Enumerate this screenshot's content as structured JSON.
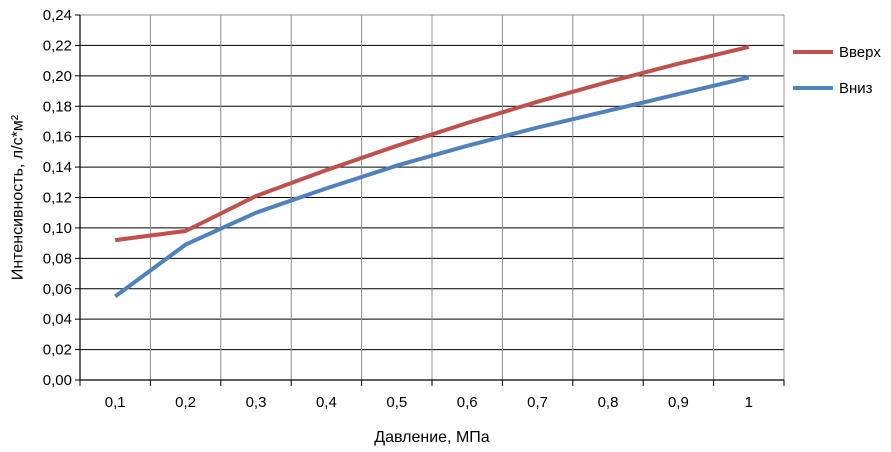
{
  "chart_data": {
    "type": "line",
    "title": "",
    "xlabel": "Давление, МПа",
    "ylabel": "Интенсивность, л/с*м²",
    "x": [
      0.1,
      0.2,
      0.3,
      0.4,
      0.5,
      0.6,
      0.7,
      0.8,
      0.9,
      1.0
    ],
    "x_tick_labels": [
      "0,1",
      "0,2",
      "0,3",
      "0,4",
      "0,5",
      "0,6",
      "0,7",
      "0,8",
      "0,9",
      "1"
    ],
    "ylim": [
      0,
      0.24
    ],
    "y_tick_labels": [
      "0,00",
      "0,02",
      "0,04",
      "0,06",
      "0,08",
      "0,10",
      "0,12",
      "0,14",
      "0,16",
      "0,18",
      "0,20",
      "0,22",
      "0,24"
    ],
    "grid": true,
    "legend_position": "right",
    "series": [
      {
        "name": "Вверх",
        "color": "#c0504d",
        "values": [
          0.092,
          0.098,
          0.121,
          0.138,
          0.154,
          0.169,
          0.183,
          0.196,
          0.208,
          0.219
        ]
      },
      {
        "name": "Вниз",
        "color": "#4f81bd",
        "values": [
          0.055,
          0.089,
          0.11,
          0.126,
          0.141,
          0.154,
          0.166,
          0.177,
          0.188,
          0.199
        ]
      }
    ]
  }
}
